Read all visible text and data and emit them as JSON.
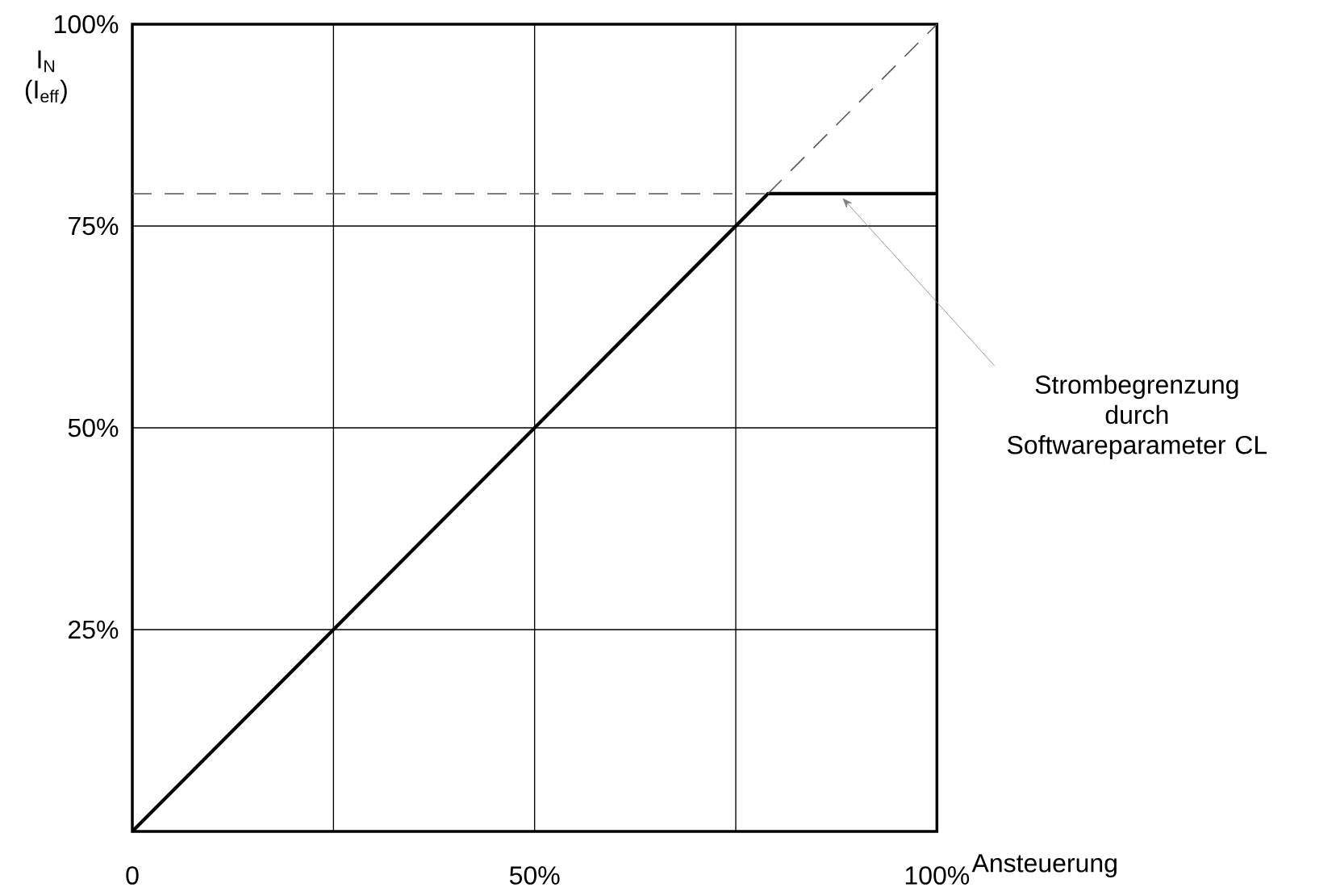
{
  "chart_data": {
    "type": "line",
    "xlabel": "Ansteuerung",
    "ylabel": "I$_{N}$ (I$_{eff}$)",
    "xlim": [
      0,
      100
    ],
    "ylim": [
      0,
      100
    ],
    "xticks": [
      {
        "value": 0,
        "label": "0"
      },
      {
        "value": 25,
        "label": null
      },
      {
        "value": 50,
        "label": "50%"
      },
      {
        "value": 75,
        "label": null
      },
      {
        "value": 100,
        "label": "100%"
      }
    ],
    "yticks": [
      {
        "value": 25,
        "label": "25%"
      },
      {
        "value": 50,
        "label": "50%"
      },
      {
        "value": 75,
        "label": "75%"
      },
      {
        "value": 100,
        "label": "100%"
      }
    ],
    "grid": true,
    "marker": "none",
    "series": [
      {
        "x": [
          0,
          79,
          100
        ],
        "values": [
          0,
          79,
          79
        ],
        "color": "#000000",
        "line_style": "solid"
      },
      {
        "x": [
          79,
          100
        ],
        "values": [
          79,
          100
        ],
        "color": "#555555",
        "line_style": "dashed"
      },
      {
        "x": [
          0,
          79
        ],
        "values": [
          79,
          79
        ],
        "color": "#555555",
        "line_style": "dashed"
      }
    ],
    "annotations": [
      {
        "text": "Strombegrenzung durch Softwareparameter CL",
        "x": 88,
        "y": 79
      }
    ]
  }
}
